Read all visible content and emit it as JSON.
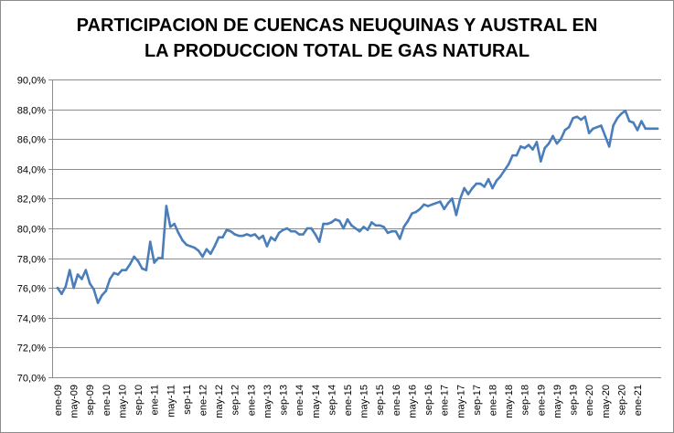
{
  "chart_data": {
    "type": "line",
    "title": [
      "PARTICIPACION DE CUENCAS NEUQUINAS Y AUSTRAL EN",
      "LA PRODUCCION TOTAL DE GAS NATURAL"
    ],
    "xlabel": "",
    "ylabel": "",
    "ylim": [
      70,
      90
    ],
    "yticks": [
      70,
      72,
      74,
      76,
      78,
      80,
      82,
      84,
      86,
      88,
      90
    ],
    "ytick_labels": [
      "70,0%",
      "72,0%",
      "74,0%",
      "76,0%",
      "78,0%",
      "80,0%",
      "82,0%",
      "84,0%",
      "86,0%",
      "88,0%",
      "90,0%"
    ],
    "xtick_labels": [
      "ene-09",
      "may-09",
      "sep-09",
      "ene-10",
      "may-10",
      "sep-10",
      "ene-11",
      "may-11",
      "sep-11",
      "ene-12",
      "may-12",
      "sep-12",
      "ene-13",
      "may-13",
      "sep-13",
      "ene-14",
      "may-14",
      "sep-14",
      "ene-15",
      "may-15",
      "sep-15",
      "ene-16",
      "may-16",
      "sep-16",
      "ene-17",
      "may-17",
      "sep-17",
      "ene-18",
      "may-18",
      "sep-18",
      "ene-19",
      "may-19",
      "sep-19",
      "ene-20",
      "may-20",
      "sep-20",
      "ene-21"
    ],
    "grid": true,
    "series": [
      {
        "color": "#4a7ebb",
        "values": [
          76.0,
          75.6,
          76.1,
          77.2,
          76.0,
          76.9,
          76.6,
          77.2,
          76.3,
          75.9,
          75.0,
          75.5,
          75.8,
          76.6,
          77.0,
          76.9,
          77.2,
          77.2,
          77.6,
          78.1,
          77.8,
          77.3,
          77.2,
          79.1,
          77.7,
          78.0,
          78.0,
          81.5,
          80.1,
          80.3,
          79.7,
          79.2,
          78.9,
          78.8,
          78.7,
          78.5,
          78.1,
          78.6,
          78.3,
          78.8,
          79.4,
          79.4,
          79.9,
          79.8,
          79.6,
          79.5,
          79.5,
          79.6,
          79.5,
          79.6,
          79.3,
          79.5,
          78.8,
          79.4,
          79.2,
          79.7,
          79.9,
          80.0,
          79.8,
          79.8,
          79.6,
          79.6,
          80.0,
          80.0,
          79.6,
          79.1,
          80.3,
          80.3,
          80.4,
          80.6,
          80.5,
          80.0,
          80.6,
          80.2,
          80.0,
          79.8,
          80.1,
          79.9,
          80.4,
          80.2,
          80.2,
          80.1,
          79.7,
          79.8,
          79.8,
          79.3,
          80.1,
          80.5,
          81.0,
          81.1,
          81.3,
          81.6,
          81.5,
          81.6,
          81.7,
          81.8,
          81.3,
          81.7,
          82.0,
          80.9,
          82.0,
          82.7,
          82.3,
          82.7,
          83.0,
          83.0,
          82.8,
          83.3,
          82.7,
          83.2,
          83.5,
          83.9,
          84.3,
          84.9,
          84.9,
          85.5,
          85.4,
          85.6,
          85.3,
          85.8,
          84.5,
          85.4,
          85.7,
          86.2,
          85.7,
          86.0,
          86.6,
          86.8,
          87.4,
          87.5,
          87.3,
          87.5,
          86.4,
          86.7,
          86.8,
          86.9,
          86.2,
          85.5,
          86.9,
          87.4,
          87.7,
          87.9,
          87.2,
          87.1,
          86.6,
          87.2,
          86.7,
          86.7,
          86.7,
          86.7
        ]
      }
    ]
  }
}
